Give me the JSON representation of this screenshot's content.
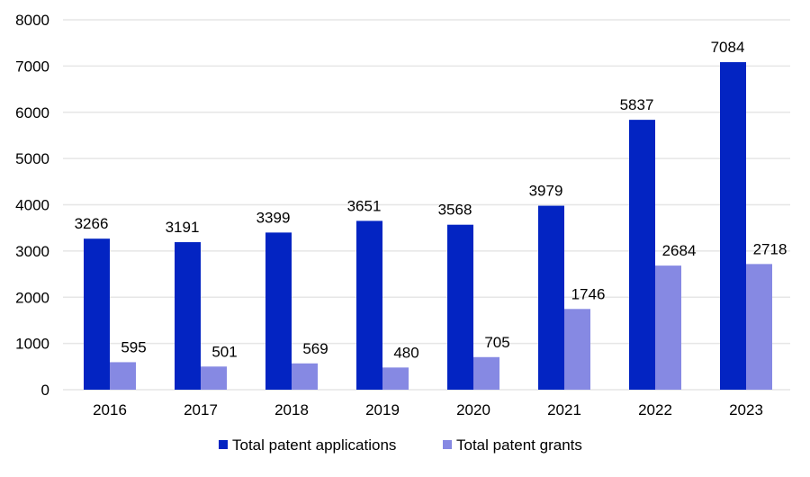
{
  "chart_data": {
    "type": "bar",
    "title": "",
    "xlabel": "",
    "ylabel": "",
    "ylim": [
      0,
      8000
    ],
    "yticks": [
      0,
      1000,
      2000,
      3000,
      4000,
      5000,
      6000,
      7000,
      8000
    ],
    "grid": true,
    "legend_position": "bottom",
    "categories": [
      "2016",
      "2017",
      "2018",
      "2019",
      "2020",
      "2021",
      "2022",
      "2023"
    ],
    "series": [
      {
        "name": "Total patent applications",
        "color": "#0324C2",
        "values": [
          3266,
          3191,
          3399,
          3651,
          3568,
          3979,
          5837,
          7084
        ]
      },
      {
        "name": "Total patent grants",
        "color": "#8689E3",
        "values": [
          595,
          501,
          569,
          480,
          705,
          1746,
          2684,
          2718
        ]
      }
    ]
  }
}
